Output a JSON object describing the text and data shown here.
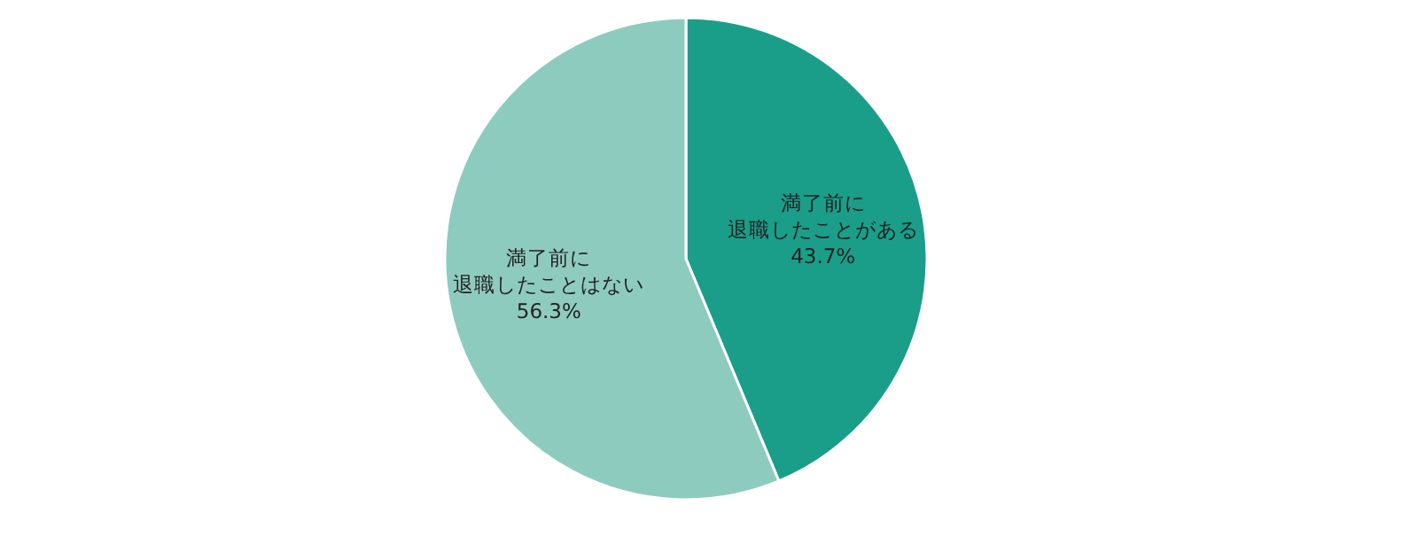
{
  "chart_data": {
    "type": "pie",
    "categories": [
      "満了前に退職したことがある",
      "満了前に退職したことはない"
    ],
    "values": [
      43.7,
      56.3
    ],
    "colors": [
      "#1a9e89",
      "#8ecbbf"
    ],
    "value_labels": [
      "43.7%",
      "56.3%"
    ]
  }
}
